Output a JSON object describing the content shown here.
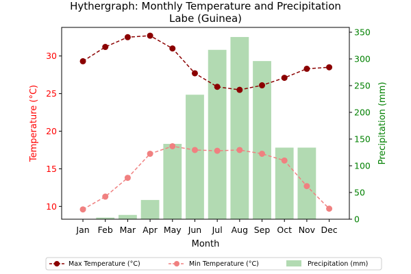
{
  "chart_data": {
    "type": "bar",
    "title": "Hythergraph: Monthly Temperature and Precipitation\nLabe (Guinea)",
    "xlabel": "Month",
    "ylabel_left": "Temperature (°C)",
    "ylabel_right": "Precipitation (mm)",
    "categories": [
      "Jan",
      "Feb",
      "Mar",
      "Apr",
      "May",
      "Jun",
      "Jul",
      "Aug",
      "Sep",
      "Oct",
      "Nov",
      "Dec"
    ],
    "ylim_left": [
      8.3,
      33.8
    ],
    "ylim_right": [
      0,
      359
    ],
    "left_ticks": [
      10,
      15,
      20,
      25,
      30
    ],
    "right_ticks": [
      0,
      50,
      100,
      150,
      200,
      250,
      300,
      350
    ],
    "series": [
      {
        "name": "Max Temperature (°C)",
        "kind": "line",
        "axis": "left",
        "color": "#8b0000",
        "values": [
          29.3,
          31.2,
          32.5,
          32.7,
          31.0,
          27.7,
          25.9,
          25.5,
          26.1,
          27.1,
          28.3,
          28.5
        ]
      },
      {
        "name": "Min Temperature (°C)",
        "kind": "line",
        "axis": "left",
        "color": "#f08080",
        "values": [
          9.6,
          11.3,
          13.8,
          17.0,
          18.0,
          17.5,
          17.4,
          17.5,
          17.0,
          16.1,
          12.7,
          9.7
        ]
      },
      {
        "name": "Precipitation (mm)",
        "kind": "bar",
        "axis": "right",
        "color": "#b2dab2",
        "values": [
          0,
          3,
          8,
          36,
          141,
          233,
          317,
          341,
          296,
          134,
          134,
          0
        ]
      }
    ],
    "grid": false,
    "legend": "bottom-center",
    "colors": {
      "left_axis": "#ff0000",
      "right_axis": "#008000"
    }
  }
}
